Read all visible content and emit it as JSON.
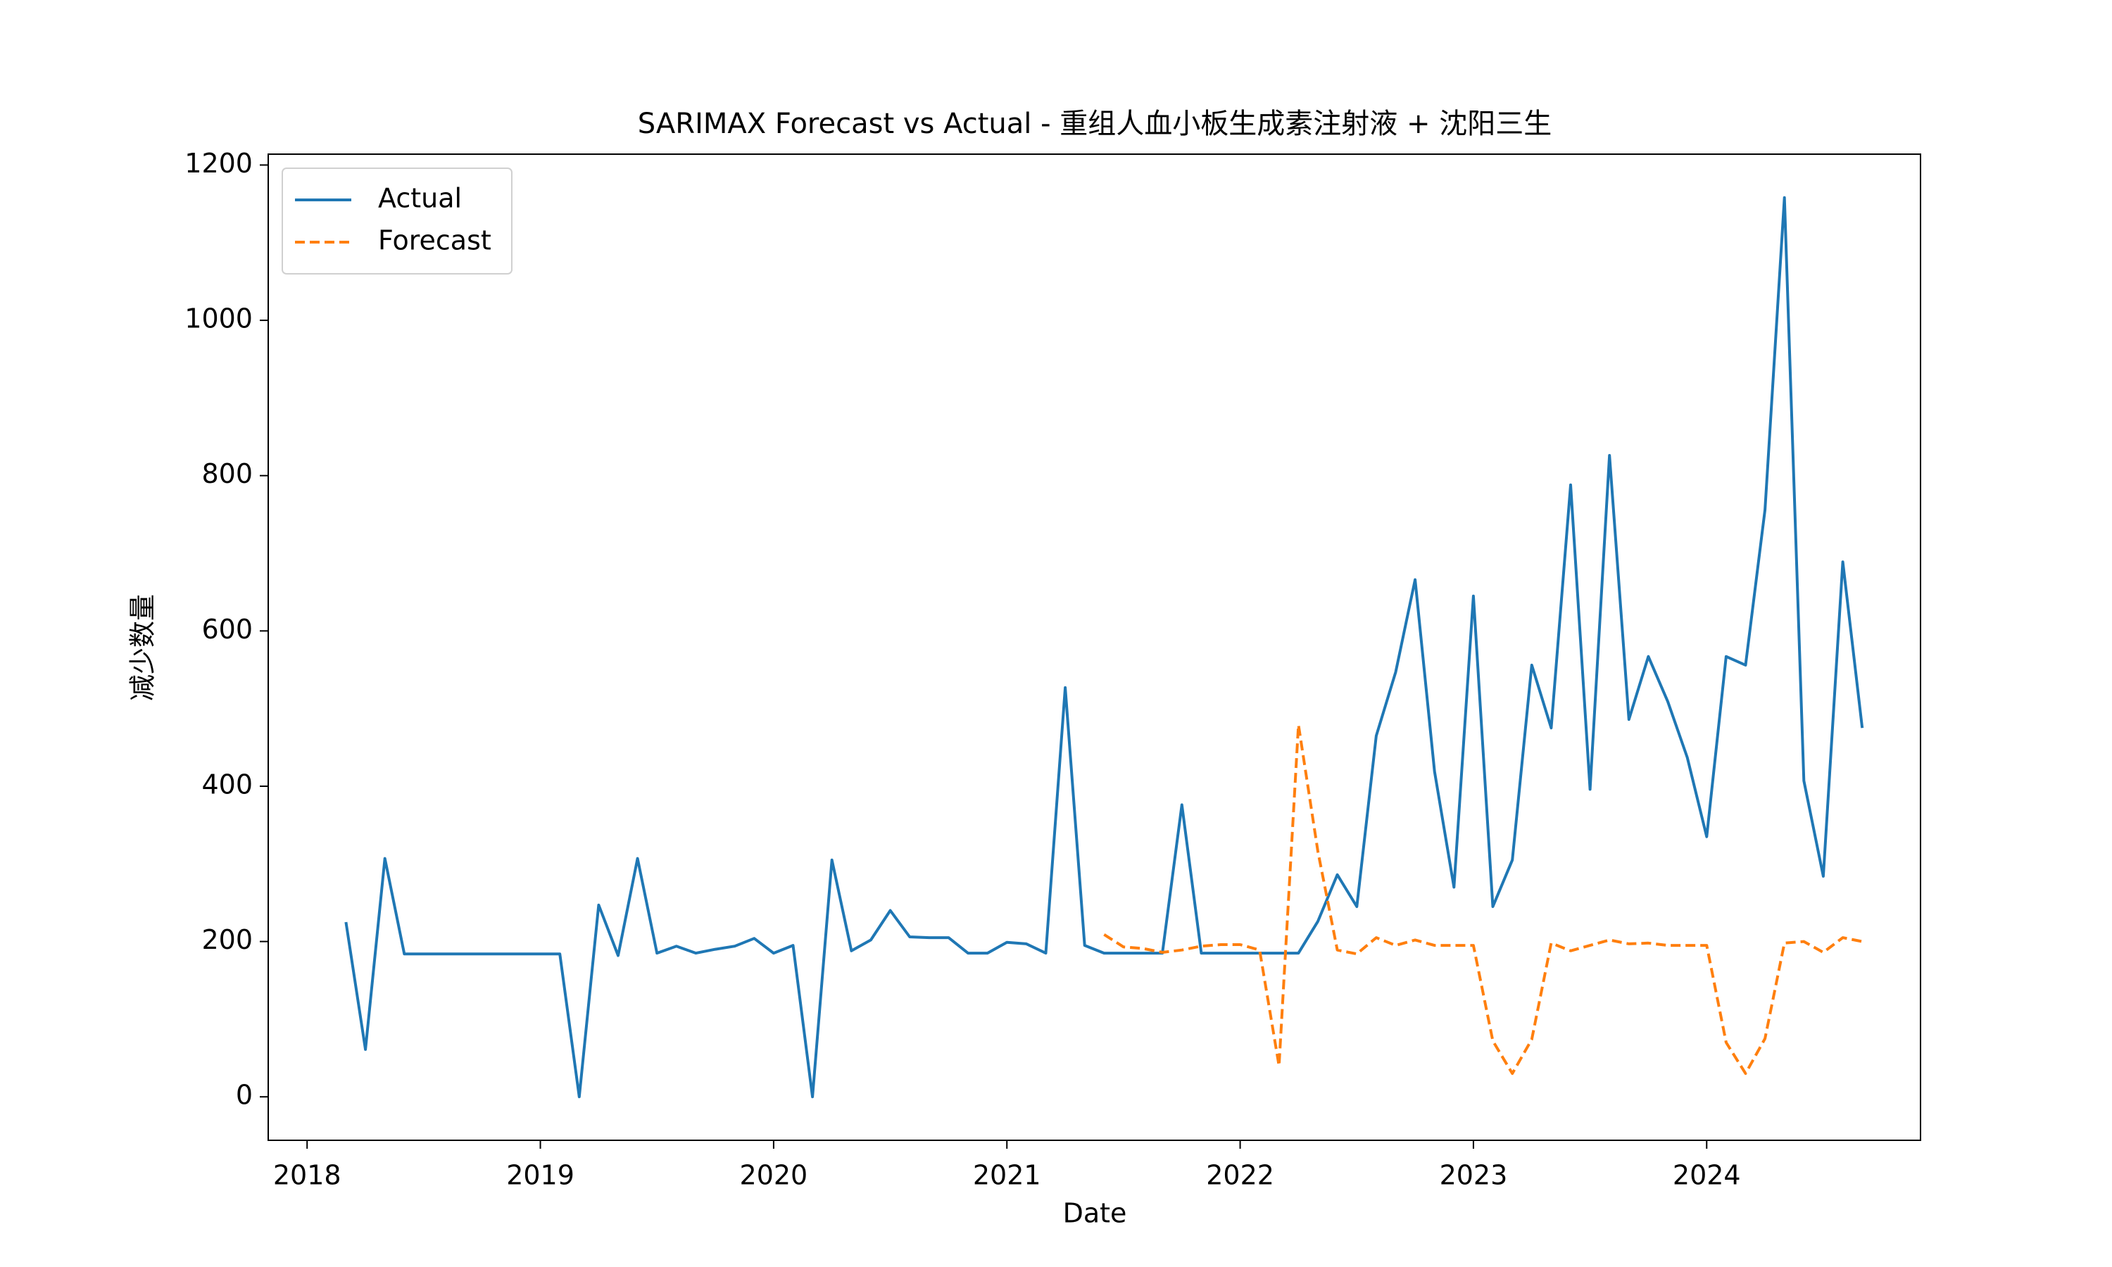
{
  "chart_data": {
    "type": "line",
    "title": "SARIMAX Forecast vs Actual - 重组人血小板生成素注射液 + 沈阳三生",
    "x_label": "Date",
    "y_label": "减少数量",
    "x": [
      "2018-03",
      "2018-04",
      "2018-05",
      "2018-06",
      "2018-07",
      "2018-08",
      "2018-09",
      "2018-10",
      "2018-11",
      "2018-12",
      "2019-01",
      "2019-02",
      "2019-03",
      "2019-04",
      "2019-05",
      "2019-06",
      "2019-07",
      "2019-08",
      "2019-09",
      "2019-10",
      "2019-11",
      "2019-12",
      "2020-01",
      "2020-02",
      "2020-03",
      "2020-04",
      "2020-05",
      "2020-06",
      "2020-07",
      "2020-08",
      "2020-09",
      "2020-10",
      "2020-11",
      "2020-12",
      "2021-01",
      "2021-02",
      "2021-03",
      "2021-04",
      "2021-05",
      "2021-06",
      "2021-07",
      "2021-08",
      "2021-09",
      "2021-10",
      "2021-11",
      "2021-12",
      "2022-01",
      "2022-02",
      "2022-03",
      "2022-04",
      "2022-05",
      "2022-06",
      "2022-07",
      "2022-08",
      "2022-09",
      "2022-10",
      "2022-11",
      "2022-12",
      "2023-01",
      "2023-02",
      "2023-03",
      "2023-04",
      "2023-05",
      "2023-06",
      "2023-07",
      "2023-08",
      "2023-09",
      "2023-10",
      "2023-11",
      "2023-12",
      "2024-01",
      "2024-02",
      "2024-03",
      "2024-04",
      "2024-05",
      "2024-06",
      "2024-07",
      "2024-08",
      "2024-09"
    ],
    "series": [
      {
        "name": "Actual",
        "color": "#1f77b4",
        "dash": false,
        "values": [
          225,
          61,
          307,
          184,
          184,
          184,
          184,
          184,
          184,
          184,
          184,
          184,
          0,
          247,
          182,
          307,
          185,
          194,
          185,
          190,
          194,
          204,
          185,
          195,
          0,
          305,
          188,
          202,
          240,
          206,
          205,
          205,
          185,
          185,
          199,
          197,
          185,
          527,
          195,
          185,
          185,
          185,
          185,
          376,
          185,
          185,
          185,
          185,
          185,
          185,
          226,
          286,
          245,
          465,
          547,
          666,
          419,
          270,
          645,
          245,
          305,
          556,
          475,
          788,
          396,
          826,
          486,
          567,
          509,
          437,
          335,
          567,
          556,
          756,
          1158,
          407,
          284,
          689,
          475
        ]
      },
      {
        "name": "Forecast",
        "color": "#ff7f0e",
        "dash": true,
        "values": [
          null,
          null,
          null,
          null,
          null,
          null,
          null,
          null,
          null,
          null,
          null,
          null,
          null,
          null,
          null,
          null,
          null,
          null,
          null,
          null,
          null,
          null,
          null,
          null,
          null,
          null,
          null,
          null,
          null,
          null,
          null,
          null,
          null,
          null,
          null,
          null,
          null,
          null,
          null,
          209,
          193,
          191,
          186,
          189,
          194,
          196,
          196,
          189,
          40,
          479,
          316,
          189,
          184,
          205,
          195,
          202,
          195,
          195,
          195,
          72,
          30,
          74,
          198,
          188,
          195,
          202,
          197,
          198,
          195,
          195,
          195,
          70,
          30,
          75,
          198,
          200,
          186,
          205,
          200
        ]
      }
    ],
    "xlim": [
      "2017-11",
      "2024-12"
    ],
    "xticks": [
      "2018",
      "2019",
      "2020",
      "2021",
      "2022",
      "2023",
      "2024"
    ],
    "ylim": [
      -56,
      1214
    ],
    "yticks": [
      0,
      200,
      400,
      600,
      800,
      1000,
      1200
    ],
    "grid": false,
    "legend": "upper left"
  }
}
